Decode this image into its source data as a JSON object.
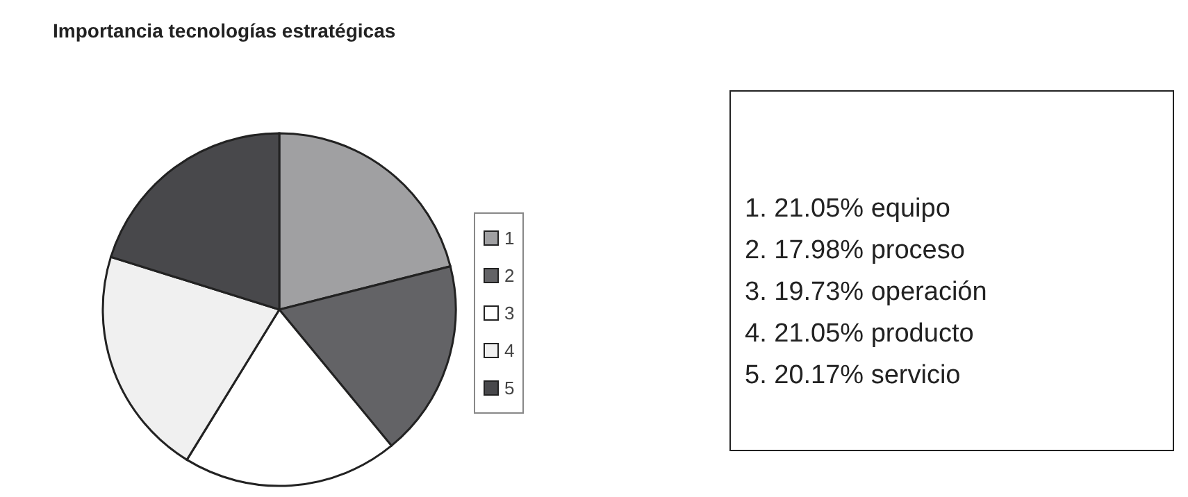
{
  "chart_data": {
    "type": "pie",
    "title": "Importancia tecnologías estratégicas",
    "categories": [
      "1",
      "2",
      "3",
      "4",
      "5"
    ],
    "values": [
      21.05,
      17.98,
      19.73,
      21.05,
      20.17
    ],
    "colors": [
      "#a0a0a2",
      "#636366",
      "#ffffff",
      "#f0f0f0",
      "#48484b"
    ],
    "legend": "right",
    "annotations": [
      "1. 21.05% equipo",
      "2. 17.98% proceso",
      "3. 19.73% operación",
      "4. 21.05% producto",
      "5. 20.17% servicio"
    ]
  }
}
